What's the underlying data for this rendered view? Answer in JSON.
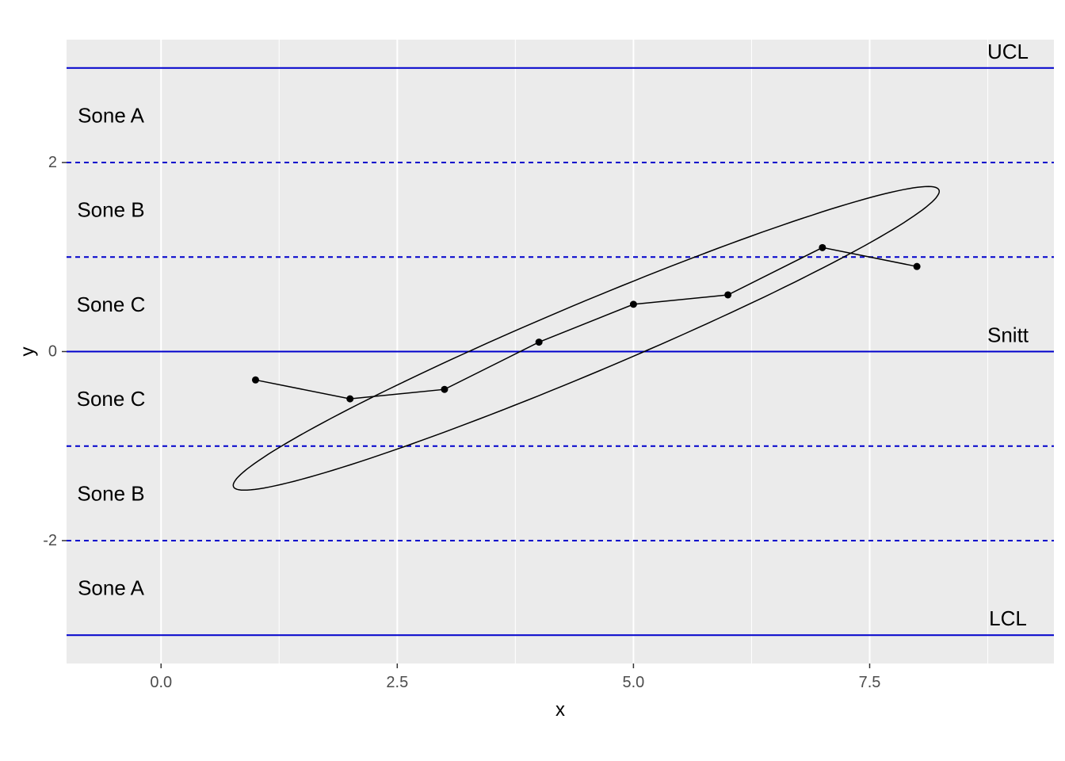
{
  "chart_data": {
    "type": "line",
    "title": "",
    "xlabel": "x",
    "ylabel": "y",
    "xlim": [
      -1,
      9.45
    ],
    "ylim": [
      -3.3,
      3.3
    ],
    "x_ticks": [
      0,
      2.5,
      5,
      7.5
    ],
    "x_tick_labels": [
      "0.0",
      "2.5",
      "5.0",
      "7.5"
    ],
    "x_minor_ticks": [
      1.25,
      3.75,
      6.25,
      8.75
    ],
    "y_ticks": [
      -2,
      0,
      2
    ],
    "y_tick_labels": [
      "-2",
      "0",
      "2"
    ],
    "y_minor_ticks": [],
    "grid": true,
    "series": [
      {
        "x": [
          1,
          2,
          3,
          4,
          5,
          6,
          7,
          8
        ],
        "y": [
          -0.3,
          -0.5,
          -0.4,
          0.1,
          0.5,
          0.6,
          1.1,
          0.9
        ]
      }
    ],
    "control_lines": [
      {
        "y": 3,
        "style": "solid",
        "label": "UCL"
      },
      {
        "y": 2,
        "style": "dashed",
        "label": ""
      },
      {
        "y": 1,
        "style": "dashed",
        "label": ""
      },
      {
        "y": 0,
        "style": "solid",
        "label": "Snitt"
      },
      {
        "y": -1,
        "style": "dashed",
        "label": ""
      },
      {
        "y": -2,
        "style": "dashed",
        "label": ""
      },
      {
        "y": -3,
        "style": "solid",
        "label": "LCL"
      }
    ],
    "zone_labels": [
      {
        "y": 2.5,
        "text": "Sone A"
      },
      {
        "y": 1.5,
        "text": "Sone B"
      },
      {
        "y": 0.5,
        "text": "Sone C"
      },
      {
        "y": -0.5,
        "text": "Sone C"
      },
      {
        "y": -1.5,
        "text": "Sone B"
      },
      {
        "y": -2.5,
        "text": "Sone A"
      }
    ],
    "ellipse": {
      "cx": 4.5,
      "cy": 0.14,
      "rx": 4.05,
      "ry": 0.37,
      "angle_deg": 22.8
    },
    "colors": {
      "panel": "#ebebeb",
      "grid": "#ffffff",
      "control_line": "#0000cc",
      "series": "#000000"
    }
  }
}
